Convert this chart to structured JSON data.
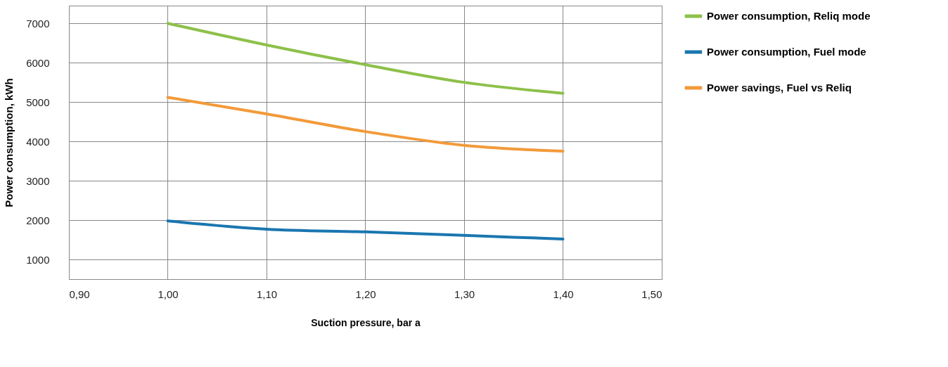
{
  "chart_data": {
    "type": "line",
    "xlabel": "Suction pressure, bar a",
    "ylabel": "Power consumption, kWh",
    "x": [
      1.0,
      1.1,
      1.2,
      1.3,
      1.4
    ],
    "series": [
      {
        "name": "Power consumption, Reliq mode",
        "color": "#8dc04a",
        "values": [
          7000,
          6450,
          5950,
          5500,
          5220
        ]
      },
      {
        "name": "Power consumption, Fuel mode",
        "color": "#1a76b0",
        "values": [
          1980,
          1770,
          1700,
          1610,
          1520
        ]
      },
      {
        "name": "Power savings, Fuel vs Reliq",
        "color": "#f29a3a",
        "values": [
          5120,
          4700,
          4250,
          3900,
          3750
        ]
      }
    ],
    "xlim": [
      0.9,
      1.5
    ],
    "xticks": [
      {
        "value": 0.9,
        "label": "0,90"
      },
      {
        "value": 1.0,
        "label": "1,00"
      },
      {
        "value": 1.1,
        "label": "1,10"
      },
      {
        "value": 1.2,
        "label": "1,20"
      },
      {
        "value": 1.3,
        "label": "1,30"
      },
      {
        "value": 1.4,
        "label": "1,40"
      },
      {
        "value": 1.5,
        "label": "1,50"
      }
    ],
    "ylim": [
      500,
      7450
    ],
    "yticks": [
      1000,
      2000,
      3000,
      4000,
      5000,
      6000,
      7000
    ],
    "grid": true,
    "legend": "right",
    "line_style": "solid",
    "marker": "none"
  }
}
